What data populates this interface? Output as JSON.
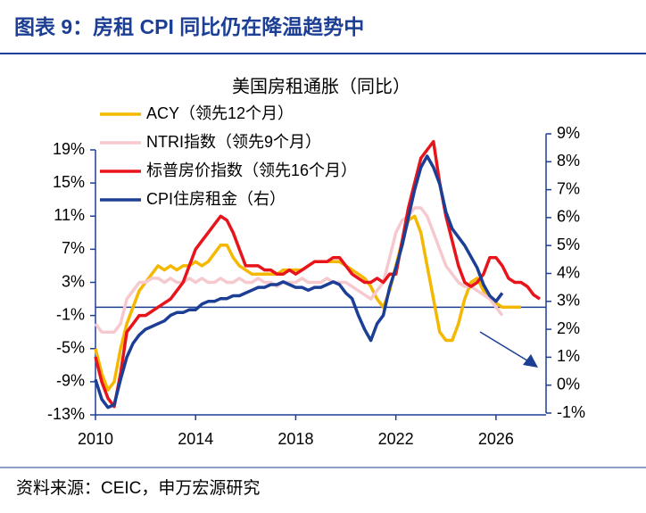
{
  "header": {
    "title": "图表 9：房租 CPI 同比仍在降温趋势中"
  },
  "chart_data": {
    "type": "line",
    "title": "美国房租通胀（同比）",
    "x": [
      2010,
      2010.25,
      2010.5,
      2010.75,
      2011,
      2011.25,
      2011.5,
      2011.75,
      2012,
      2012.25,
      2012.5,
      2012.75,
      2013,
      2013.25,
      2013.5,
      2013.75,
      2014,
      2014.25,
      2014.5,
      2014.75,
      2015,
      2015.25,
      2015.5,
      2015.75,
      2016,
      2016.25,
      2016.5,
      2016.75,
      2017,
      2017.25,
      2017.5,
      2017.75,
      2018,
      2018.25,
      2018.5,
      2018.75,
      2019,
      2019.25,
      2019.5,
      2019.75,
      2020,
      2020.25,
      2020.5,
      2020.75,
      2021,
      2021.25,
      2021.5,
      2021.75,
      2022,
      2022.25,
      2022.5,
      2022.75,
      2023,
      2023.25,
      2023.5,
      2023.75,
      2024,
      2024.25,
      2024.5,
      2024.75,
      2025,
      2025.25,
      2025.5,
      2025.75,
      2026,
      2026.25,
      2026.5,
      2026.75,
      2027,
      2027.25,
      2027.5,
      2027.75
    ],
    "series": [
      {
        "name": "ACY（领先12个月）",
        "color": "#f5b800",
        "values": [
          -5,
          -8,
          -10,
          -9,
          -5,
          -2,
          0,
          2,
          3,
          4,
          5,
          4.5,
          5,
          4.5,
          5,
          5,
          5.5,
          5,
          5.5,
          6.5,
          7.5,
          7.5,
          6,
          5,
          4.5,
          4,
          4,
          4,
          4,
          4,
          4.5,
          4.5,
          4.5,
          4.5,
          5,
          5.5,
          5.5,
          5.5,
          5.5,
          5.5,
          5,
          4.5,
          4,
          3.5,
          2.5,
          1,
          0,
          2,
          5,
          8,
          10.5,
          11,
          9,
          5,
          1,
          -3,
          -4,
          -4,
          -2,
          1,
          3,
          3.5,
          2,
          1,
          0.5,
          0,
          0,
          0,
          0,
          null,
          null,
          null
        ]
      },
      {
        "name": "NTRI指数（领先9个月）",
        "color": "#f6c9cf",
        "values": [
          -2,
          -3,
          -3,
          -3,
          -2,
          1,
          2,
          3,
          3,
          3.5,
          3.5,
          3,
          3.5,
          3,
          3,
          3.5,
          3,
          3.5,
          3,
          3,
          3.5,
          3,
          3,
          3.5,
          3,
          3,
          3.5,
          3,
          3,
          2.5,
          3,
          3,
          3,
          3.5,
          3,
          3,
          3,
          3.5,
          3,
          3,
          3,
          2.5,
          2,
          1.5,
          1,
          2,
          3,
          6,
          9,
          10.5,
          11,
          12,
          12,
          11,
          9,
          7,
          5,
          4,
          3,
          2.5,
          2.5,
          2,
          1.5,
          1,
          0,
          -1,
          null,
          null,
          null,
          null,
          null,
          null
        ]
      },
      {
        "name": "标普房价指数（领先16个月）",
        "color": "#e8141c",
        "values": [
          -6,
          -9,
          -11,
          -12,
          -8,
          -3,
          -2,
          -1,
          -1,
          -0.5,
          0,
          0.5,
          1,
          2,
          3,
          5,
          7,
          8,
          9,
          10,
          11,
          10.5,
          9,
          7,
          5,
          5,
          5,
          4.5,
          4.5,
          4,
          4,
          4.5,
          4,
          4.5,
          5,
          5.5,
          5.5,
          5.5,
          6,
          6,
          5,
          4,
          3.5,
          3,
          3,
          3.5,
          3,
          4,
          4,
          8,
          12,
          15,
          18,
          19,
          20,
          15,
          11,
          8,
          5,
          3,
          2.5,
          3,
          4,
          6,
          6,
          5,
          3.5,
          3,
          3,
          2.5,
          1.5,
          1
        ]
      },
      {
        "name": "CPI住房租金（右）",
        "color": "#1c3f95",
        "axis": "y2",
        "values": [
          0.2,
          -0.5,
          -0.8,
          -0.7,
          0.2,
          1,
          1.5,
          1.8,
          2,
          2.1,
          2.2,
          2.3,
          2.5,
          2.6,
          2.6,
          2.7,
          2.7,
          2.9,
          3,
          3,
          3.1,
          3.1,
          3.2,
          3.2,
          3.3,
          3.4,
          3.5,
          3.5,
          3.6,
          3.6,
          3.7,
          3.6,
          3.5,
          3.5,
          3.4,
          3.5,
          3.5,
          3.6,
          3.7,
          3.6,
          3.3,
          3.1,
          2.5,
          2,
          1.6,
          2.2,
          2.5,
          3.5,
          4.2,
          5,
          6,
          7,
          7.8,
          8.2,
          7.8,
          7.2,
          6.2,
          5.6,
          5.3,
          5,
          4.6,
          4.2,
          3.6,
          3.2,
          3,
          3.3,
          null,
          null,
          null,
          null,
          null,
          null
        ]
      }
    ],
    "xlim": [
      2010,
      2028
    ],
    "xticks": [
      2010,
      2014,
      2018,
      2022,
      2026
    ],
    "ylim": [
      -13,
      19
    ],
    "yticks": [
      {
        "value": -13,
        "label": "-13%"
      },
      {
        "value": -9,
        "label": "-9%"
      },
      {
        "value": -5,
        "label": "-5%"
      },
      {
        "value": -1,
        "label": "-1%"
      },
      {
        "value": 3,
        "label": "3%"
      },
      {
        "value": 7,
        "label": "7%"
      },
      {
        "value": 11,
        "label": "11%"
      },
      {
        "value": 15,
        "label": "15%"
      },
      {
        "value": 19,
        "label": "19%"
      }
    ],
    "y2lim": [
      -1,
      9
    ],
    "y2ticks": [
      {
        "value": -1,
        "label": "-1%"
      },
      {
        "value": 0,
        "label": "0%"
      },
      {
        "value": 1,
        "label": "1%"
      },
      {
        "value": 2,
        "label": "2%"
      },
      {
        "value": 3,
        "label": "3%"
      },
      {
        "value": 4,
        "label": "4%"
      },
      {
        "value": 5,
        "label": "5%"
      },
      {
        "value": 6,
        "label": "6%"
      },
      {
        "value": 7,
        "label": "7%"
      },
      {
        "value": 8,
        "label": "8%"
      },
      {
        "value": 9,
        "label": "9%"
      }
    ],
    "zero_line": true,
    "legend": "upper-left"
  },
  "footer": {
    "source": "资料来源：CEIC，申万宏源研究"
  }
}
